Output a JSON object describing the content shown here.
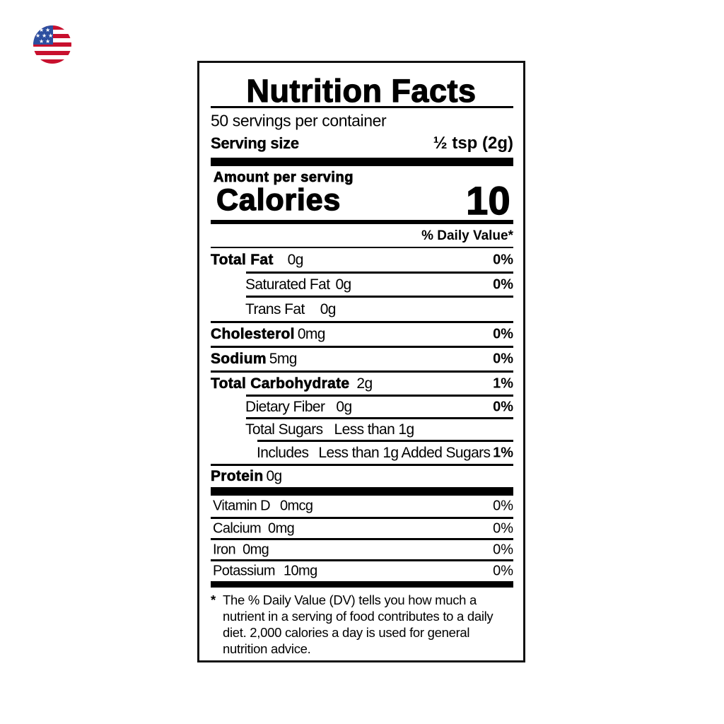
{
  "flag_icon": "us-flag-icon",
  "colors": {
    "flag_red": "#c8102e",
    "flag_blue": "#2d4fa0",
    "text": "#000000"
  },
  "label": {
    "title": "Nutrition Facts",
    "servings_per_container": "50 servings per container",
    "serving_size_label": "Serving size",
    "serving_size_value": "½ tsp (2g)",
    "amount_per_serving": "Amount per serving",
    "calories_label": "Calories",
    "calories_value": "10",
    "daily_value_header": "% Daily Value*",
    "nutrients": [
      {
        "name": "Total Fat",
        "amount": "0g",
        "dv": "0%"
      },
      {
        "name": "Saturated Fat",
        "amount": "0g",
        "dv": "0%"
      },
      {
        "name": "Trans Fat",
        "amount": "0g",
        "dv": ""
      },
      {
        "name": "Cholesterol",
        "amount": "0mg",
        "dv": "0%"
      },
      {
        "name": "Sodium",
        "amount": "5mg",
        "dv": "0%"
      },
      {
        "name": "Total Carbohydrate",
        "amount": "2g",
        "dv": "1%"
      },
      {
        "name": "Dietary Fiber",
        "amount": "0g",
        "dv": "0%"
      },
      {
        "name": "Total Sugars",
        "amount": "Less than 1g",
        "dv": ""
      },
      {
        "name": "Includes",
        "amount": "Less than 1g Added Sugars",
        "dv": "1%"
      },
      {
        "name": "Protein",
        "amount": "0g",
        "dv": ""
      }
    ],
    "vitamins": [
      {
        "name": "Vitamin D",
        "amount": "0mcg",
        "dv": "0%"
      },
      {
        "name": "Calcium",
        "amount": "0mg",
        "dv": "0%"
      },
      {
        "name": "Iron",
        "amount": "0mg",
        "dv": "0%"
      },
      {
        "name": "Potassium",
        "amount": "10mg",
        "dv": "0%"
      }
    ],
    "footnote_star": "*",
    "footnote": "The % Daily Value (DV) tells you how much a nutrient in a serving of food contributes to a daily diet. 2,000 calories a day is used for general nutrition advice."
  }
}
